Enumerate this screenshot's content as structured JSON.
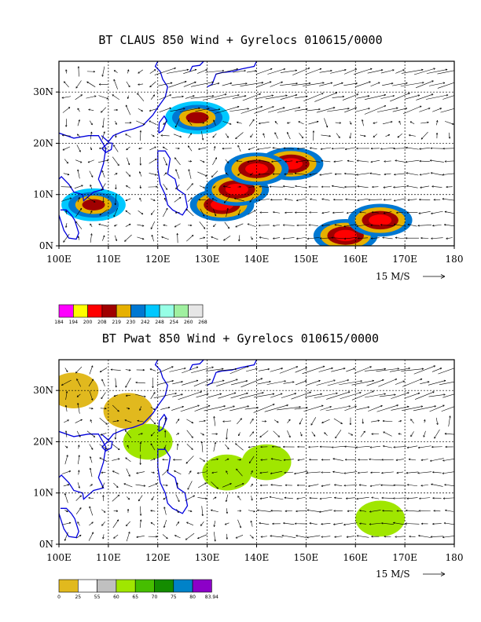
{
  "panels": [
    {
      "title": "BT CLAUS 850 Wind + Gyrelocs 010615/0000",
      "ref_vector_label": "15 M/S",
      "colorbar": {
        "colors": [
          "#ff00ff",
          "#ffff00",
          "#ff0000",
          "#a00000",
          "#e6b000",
          "#0078d2",
          "#00c8ff",
          "#96ffe6",
          "#a0f0a0",
          "#e6e6e6"
        ],
        "labels": [
          "184",
          "194",
          "200",
          "208",
          "219",
          "230",
          "242",
          "248",
          "254",
          "260",
          "268"
        ]
      }
    },
    {
      "title": "BT Pwat 850 Wind + Gyrelocs 010615/0000",
      "ref_vector_label": "15 M/S",
      "colorbar": {
        "colors": [
          "#e1b91e",
          "#ffffff",
          "#c0c0c0",
          "#a0e600",
          "#46be00",
          "#148c00",
          "#0082c8",
          "#8c00c8"
        ],
        "labels": [
          "0",
          "25",
          "55",
          "60",
          "65",
          "70",
          "75",
          "80",
          "83.94"
        ]
      }
    }
  ],
  "chart_data": [
    {
      "type": "heatmap",
      "title": "BT CLAUS 850 Wind + Gyrelocs 010615/0000",
      "x_ticks": [
        "100E",
        "110E",
        "120E",
        "130E",
        "140E",
        "150E",
        "160E",
        "170E",
        "180"
      ],
      "y_ticks": [
        "0N",
        "10N",
        "20N",
        "30N"
      ],
      "xlim": [
        100,
        180
      ],
      "ylim": [
        0,
        36
      ],
      "levels": [
        184,
        194,
        200,
        208,
        219,
        230,
        242,
        248,
        254,
        260,
        268
      ],
      "ref_vector": "15 M/S",
      "features": [
        {
          "lon": 133,
          "lat": 8,
          "level": 208
        },
        {
          "lon": 136,
          "lat": 11,
          "level": 208
        },
        {
          "lon": 147,
          "lat": 16,
          "level": 208
        },
        {
          "lon": 140,
          "lat": 15,
          "level": 208
        },
        {
          "lon": 128,
          "lat": 25,
          "level": 219
        },
        {
          "lon": 158,
          "lat": 2,
          "level": 208
        },
        {
          "lon": 165,
          "lat": 5,
          "level": 208
        },
        {
          "lon": 107,
          "lat": 8,
          "level": 219
        }
      ]
    },
    {
      "type": "heatmap",
      "title": "BT Pwat 850 Wind + Gyrelocs 010615/0000",
      "x_ticks": [
        "100E",
        "110E",
        "120E",
        "130E",
        "140E",
        "150E",
        "160E",
        "170E",
        "180"
      ],
      "y_ticks": [
        "0N",
        "10N",
        "20N",
        "30N"
      ],
      "xlim": [
        100,
        180
      ],
      "ylim": [
        0,
        36
      ],
      "levels": [
        0,
        25,
        55,
        60,
        65,
        70,
        75,
        80,
        83.94
      ],
      "ref_vector": "15 M/S",
      "features": [
        {
          "lon": 134,
          "lat": 14,
          "level": 60
        },
        {
          "lon": 142,
          "lat": 16,
          "level": 60
        },
        {
          "lon": 165,
          "lat": 5,
          "level": 60
        },
        {
          "lon": 118,
          "lat": 20,
          "level": 60
        },
        {
          "lon": 103,
          "lat": 30,
          "level": 0
        },
        {
          "lon": 114,
          "lat": 26,
          "level": 0
        }
      ]
    }
  ]
}
